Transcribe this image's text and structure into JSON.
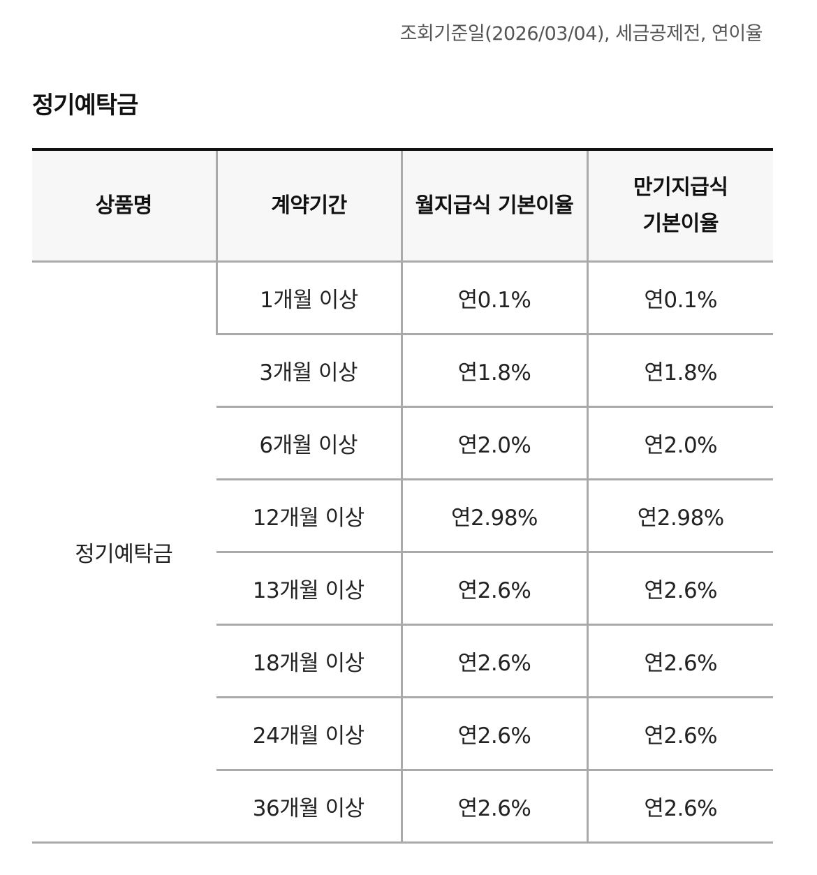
{
  "notice": "조회기준일(2026/03/04), 세금공제전, 연이율",
  "section_title": "정기예탁금",
  "table": {
    "headers": {
      "product": "상품명",
      "period": "계약기간",
      "monthly_rate": "월지급식 기본이율",
      "maturity_rate": "만기지급식 기본이율"
    },
    "product_name": "정기예탁금",
    "rows": [
      {
        "period": "1개월 이상",
        "monthly_rate": "연0.1%",
        "maturity_rate": "연0.1%"
      },
      {
        "period": "3개월 이상",
        "monthly_rate": "연1.8%",
        "maturity_rate": "연1.8%"
      },
      {
        "period": "6개월 이상",
        "monthly_rate": "연2.0%",
        "maturity_rate": "연2.0%"
      },
      {
        "period": "12개월 이상",
        "monthly_rate": "연2.98%",
        "maturity_rate": "연2.98%"
      },
      {
        "period": "13개월 이상",
        "monthly_rate": "연2.6%",
        "maturity_rate": "연2.6%"
      },
      {
        "period": "18개월 이상",
        "monthly_rate": "연2.6%",
        "maturity_rate": "연2.6%"
      },
      {
        "period": "24개월 이상",
        "monthly_rate": "연2.6%",
        "maturity_rate": "연2.6%"
      },
      {
        "period": "36개월 이상",
        "monthly_rate": "연2.6%",
        "maturity_rate": "연2.6%"
      }
    ]
  }
}
